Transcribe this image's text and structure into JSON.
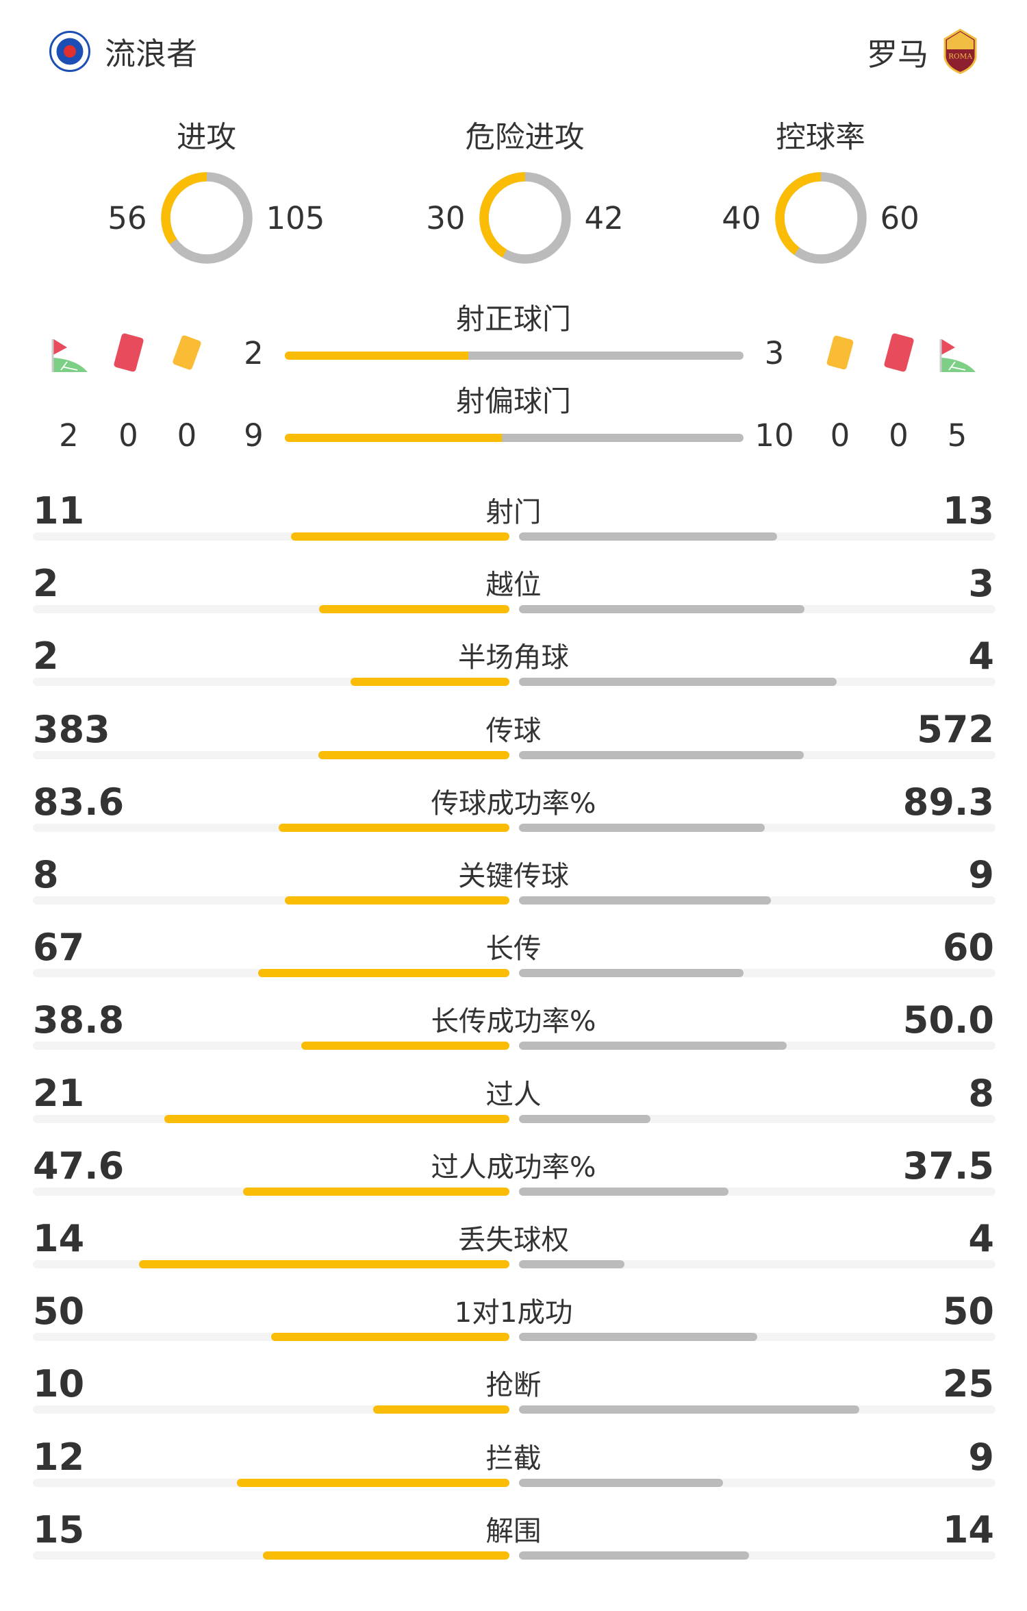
{
  "teams": {
    "home": {
      "name": "流浪者",
      "logo_text": "RANGERS FOOTBALL CLUB"
    },
    "away": {
      "name": "罗马",
      "logo_text": "ROMA"
    }
  },
  "colors": {
    "home": "#fbbc05",
    "away": "#bbbbbb",
    "track": "#f4f4f4",
    "red_card": "#e84c5c",
    "yellow_card": "#fbbc35",
    "flag_green": "#7ccf85"
  },
  "rings": [
    {
      "label": "进攻",
      "home": 56,
      "away": 105
    },
    {
      "label": "危险进攻",
      "home": 30,
      "away": 42
    },
    {
      "label": "控球率",
      "home": 40,
      "away": 60
    }
  ],
  "shots_on_target": {
    "label": "射正球门",
    "home": 2,
    "away": 3
  },
  "shots_off_target": {
    "label": "射偏球门",
    "home": 9,
    "away": 10
  },
  "discipline": {
    "home": {
      "corners": 2,
      "red_cards": 0,
      "yellow_cards": 0
    },
    "away": {
      "yellow_cards": 0,
      "red_cards": 0,
      "corners": 5
    }
  },
  "stats": [
    {
      "label": "射门",
      "home": "11",
      "away": "13"
    },
    {
      "label": "越位",
      "home": "2",
      "away": "3"
    },
    {
      "label": "半场角球",
      "home": "2",
      "away": "4"
    },
    {
      "label": "传球",
      "home": "383",
      "away": "572"
    },
    {
      "label": "传球成功率%",
      "home": "83.6",
      "away": "89.3"
    },
    {
      "label": "关键传球",
      "home": "8",
      "away": "9"
    },
    {
      "label": "长传",
      "home": "67",
      "away": "60"
    },
    {
      "label": "长传成功率%",
      "home": "38.8",
      "away": "50.0"
    },
    {
      "label": "过人",
      "home": "21",
      "away": "8"
    },
    {
      "label": "过人成功率%",
      "home": "47.6",
      "away": "37.5"
    },
    {
      "label": "丢失球权",
      "home": "14",
      "away": "4"
    },
    {
      "label": "1对1成功",
      "home": "50",
      "away": "50"
    },
    {
      "label": "抢断",
      "home": "10",
      "away": "25"
    },
    {
      "label": "拦截",
      "home": "12",
      "away": "9"
    },
    {
      "label": "解围",
      "home": "15",
      "away": "14"
    }
  ]
}
